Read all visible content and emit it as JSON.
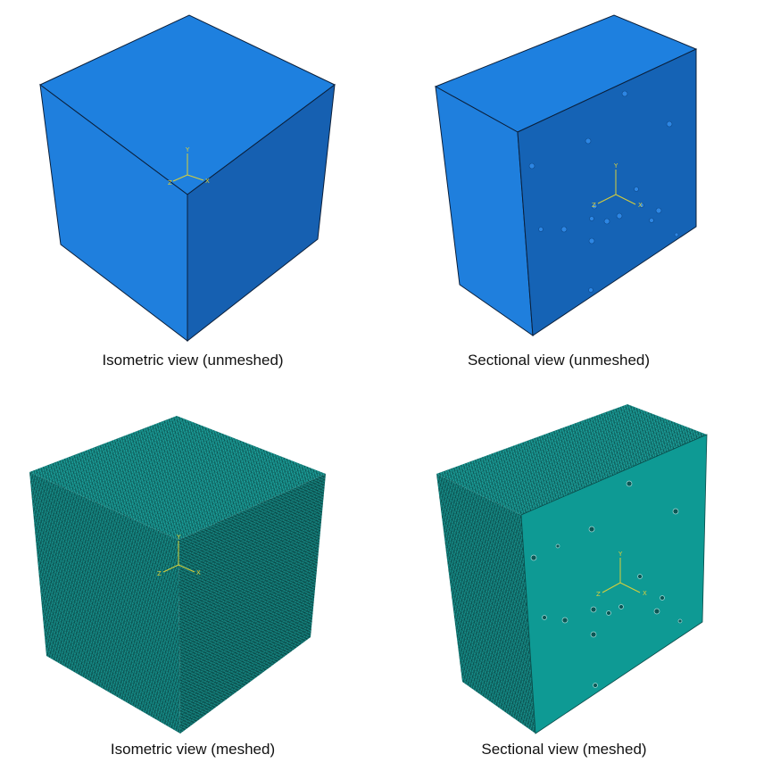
{
  "captions": {
    "iso_unmeshed": "Isometric view (unmeshed)",
    "sec_unmeshed": "Sectional view (unmeshed)",
    "iso_meshed": "Isometric view (meshed)",
    "sec_meshed": "Sectional view (meshed)"
  },
  "axis_labels": {
    "x": "X",
    "y": "Y",
    "z": "Z"
  },
  "colors": {
    "unmeshed_light": "#1f7fdd",
    "unmeshed_dark": "#1660b1",
    "unmeshed_section": "#1563b5",
    "meshed_light": "#1a9a96",
    "meshed_dark": "#127a78",
    "meshed_section": "#0e9a94",
    "edge": "#0b1f3a",
    "triad": "#d8cf3a"
  }
}
